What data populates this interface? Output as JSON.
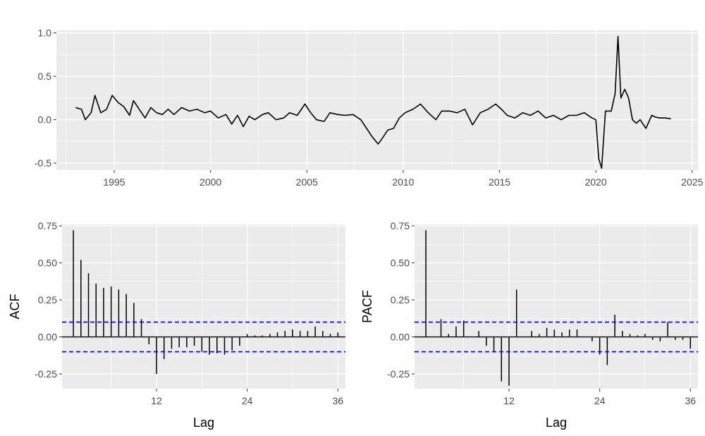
{
  "colors": {
    "panel_background": "#ebebeb",
    "grid_major": "#ffffff",
    "series": "#000000",
    "confidence_band": "#0000ff",
    "tick_text": "#4d4d4d"
  },
  "chart_data": [
    {
      "id": "timeseries",
      "type": "line",
      "title": "",
      "xlabel": "",
      "ylabel": "",
      "xlim": [
        1992.0,
        2025.3
      ],
      "ylim": [
        -0.58,
        1.03
      ],
      "x_ticks": [
        1995,
        2000,
        2005,
        2010,
        2015,
        2020,
        2025
      ],
      "x_tick_labels": [
        "1995",
        "2000",
        "2005",
        "2010",
        "2015",
        "2020",
        "2025"
      ],
      "y_ticks": [
        -0.5,
        0.0,
        0.5,
        1.0
      ],
      "y_tick_labels": [
        "-0.5",
        "0.0",
        "0.5",
        "1.0"
      ],
      "grid": true,
      "series": [
        {
          "x": [
            1993.0,
            1993.3,
            1993.5,
            1993.8,
            1994.0,
            1994.3,
            1994.6,
            1994.9,
            1995.2,
            1995.5,
            1995.8,
            1996.0,
            1996.3,
            1996.6,
            1996.9,
            1997.2,
            1997.5,
            1997.8,
            1998.1,
            1998.5,
            1998.9,
            1999.3,
            1999.7,
            2000.0,
            2000.4,
            2000.8,
            2001.1,
            2001.4,
            2001.7,
            2002.0,
            2002.3,
            2002.7,
            2003.0,
            2003.4,
            2003.8,
            2004.1,
            2004.5,
            2004.9,
            2005.2,
            2005.5,
            2005.9,
            2006.2,
            2006.6,
            2007.0,
            2007.4,
            2007.8,
            2008.1,
            2008.4,
            2008.7,
            2008.9,
            2009.2,
            2009.5,
            2009.8,
            2010.1,
            2010.5,
            2010.9,
            2011.3,
            2011.7,
            2012.0,
            2012.4,
            2012.8,
            2013.2,
            2013.6,
            2014.0,
            2014.4,
            2014.8,
            2015.1,
            2015.4,
            2015.8,
            2016.2,
            2016.6,
            2017.0,
            2017.4,
            2017.8,
            2018.2,
            2018.6,
            2019.0,
            2019.4,
            2019.8,
            2020.0,
            2020.15,
            2020.3,
            2020.5,
            2020.8,
            2021.0,
            2021.15,
            2021.3,
            2021.5,
            2021.7,
            2021.9,
            2022.1,
            2022.3,
            2022.6,
            2022.9,
            2023.1,
            2023.3,
            2023.6,
            2023.9
          ],
          "y": [
            0.14,
            0.12,
            0.0,
            0.08,
            0.28,
            0.08,
            0.12,
            0.28,
            0.2,
            0.15,
            0.05,
            0.22,
            0.12,
            0.02,
            0.14,
            0.08,
            0.06,
            0.12,
            0.06,
            0.14,
            0.1,
            0.12,
            0.08,
            0.1,
            0.02,
            0.06,
            -0.05,
            0.05,
            -0.08,
            0.04,
            0.0,
            0.06,
            0.08,
            0.0,
            0.02,
            0.08,
            0.05,
            0.18,
            0.08,
            0.0,
            -0.02,
            0.08,
            0.06,
            0.05,
            0.06,
            0.0,
            -0.1,
            -0.2,
            -0.28,
            -0.22,
            -0.12,
            -0.1,
            0.02,
            0.08,
            0.12,
            0.18,
            0.08,
            0.0,
            0.1,
            0.1,
            0.08,
            0.12,
            -0.06,
            0.08,
            0.12,
            0.18,
            0.12,
            0.05,
            0.02,
            0.08,
            0.05,
            0.1,
            0.02,
            0.05,
            0.0,
            0.05,
            0.05,
            0.08,
            0.02,
            0.0,
            -0.45,
            -0.56,
            0.1,
            0.1,
            0.3,
            0.96,
            0.25,
            0.35,
            0.25,
            0.0,
            -0.04,
            0.0,
            -0.1,
            0.05,
            0.03,
            0.02,
            0.02,
            0.01
          ]
        }
      ]
    },
    {
      "id": "acf",
      "type": "bar",
      "title": "",
      "xlabel": "Lag",
      "ylabel": "ACF",
      "xlim": [
        -0.5,
        37
      ],
      "ylim": [
        -0.35,
        0.76
      ],
      "x_ticks": [
        12,
        24,
        36
      ],
      "x_tick_labels": [
        "12",
        "24",
        "36"
      ],
      "y_ticks": [
        -0.25,
        0.0,
        0.25,
        0.5,
        0.75
      ],
      "y_tick_labels": [
        "-0.25",
        "0.00",
        "0.25",
        "0.50",
        "0.75"
      ],
      "grid": true,
      "confidence_bound": 0.1,
      "lags": [
        1,
        2,
        3,
        4,
        5,
        6,
        7,
        8,
        9,
        10,
        11,
        12,
        13,
        14,
        15,
        16,
        17,
        18,
        19,
        20,
        21,
        22,
        23,
        24,
        25,
        26,
        27,
        28,
        29,
        30,
        31,
        32,
        33,
        34,
        35,
        36
      ],
      "values": [
        0.72,
        0.52,
        0.43,
        0.36,
        0.33,
        0.34,
        0.32,
        0.29,
        0.23,
        0.12,
        -0.05,
        -0.25,
        -0.15,
        -0.08,
        -0.07,
        -0.07,
        -0.06,
        -0.1,
        -0.12,
        -0.11,
        -0.12,
        -0.09,
        -0.06,
        0.02,
        0.01,
        0.01,
        0.02,
        0.03,
        0.04,
        0.05,
        0.04,
        0.04,
        0.07,
        0.04,
        0.02,
        0.03
      ]
    },
    {
      "id": "pacf",
      "type": "bar",
      "title": "",
      "xlabel": "Lag",
      "ylabel": "PACF",
      "xlim": [
        -0.5,
        37
      ],
      "ylim": [
        -0.35,
        0.76
      ],
      "x_ticks": [
        12,
        24,
        36
      ],
      "x_tick_labels": [
        "12",
        "24",
        "36"
      ],
      "y_ticks": [
        -0.25,
        0.0,
        0.25,
        0.5,
        0.75
      ],
      "y_tick_labels": [
        "-0.25",
        "0.00",
        "0.25",
        "0.50",
        "0.75"
      ],
      "grid": true,
      "confidence_bound": 0.1,
      "lags": [
        1,
        2,
        3,
        4,
        5,
        6,
        7,
        8,
        9,
        10,
        11,
        12,
        13,
        14,
        15,
        16,
        17,
        18,
        19,
        20,
        21,
        22,
        23,
        24,
        25,
        26,
        27,
        28,
        29,
        30,
        31,
        32,
        33,
        34,
        35,
        36
      ],
      "values": [
        0.72,
        0.0,
        0.12,
        0.02,
        0.07,
        0.11,
        0.0,
        0.04,
        -0.06,
        -0.1,
        -0.3,
        -0.33,
        0.32,
        0.0,
        0.04,
        0.02,
        0.06,
        0.05,
        0.03,
        0.05,
        0.05,
        0.0,
        -0.03,
        -0.12,
        -0.19,
        0.15,
        0.04,
        0.02,
        0.01,
        0.02,
        -0.02,
        -0.03,
        0.1,
        -0.02,
        -0.02,
        -0.08
      ]
    }
  ]
}
